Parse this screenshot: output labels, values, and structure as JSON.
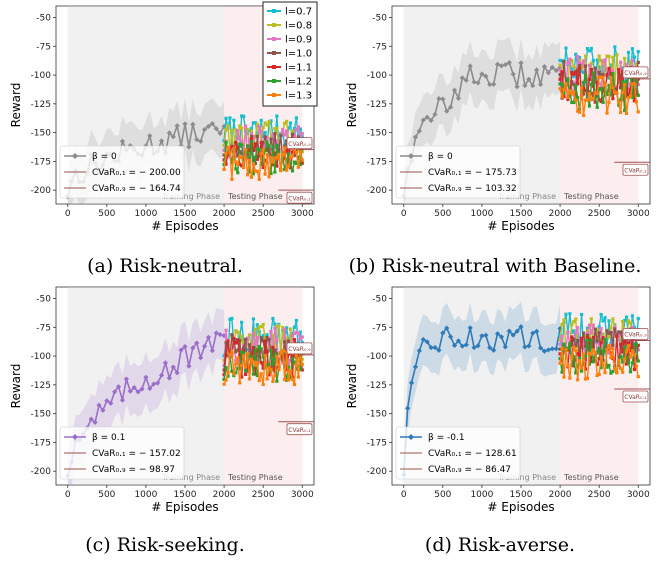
{
  "chart_data": [
    {
      "type": "line",
      "caption": "(a) Risk-neutral.",
      "main_color": "#8c8c8c",
      "main_label": "β = 0",
      "cvar_low_label": "CVaR₀.₁ = − 200.00",
      "cvar_high_label": "CVaR₀.₉ = − 164.74",
      "cvar_low_value": -200.0,
      "cvar_high_value": -164.74,
      "start": -200,
      "end": -150,
      "plateau_at": 1700,
      "test_level": -163,
      "test_spread": 12
    },
    {
      "type": "line",
      "caption": "(b) Risk-neutral with Baseline.",
      "main_color": "#8c8c8c",
      "main_label": "β = 0",
      "cvar_low_label": "CVaR₀.₁ = − 175.73",
      "cvar_high_label": "CVaR₀.₉ = − 103.32",
      "cvar_low_value": -175.73,
      "cvar_high_value": -103.32,
      "start": -200,
      "end": -100,
      "plateau_at": 900,
      "test_level": -105,
      "test_spread": 14
    },
    {
      "type": "line",
      "caption": "(c) Risk-seeking.",
      "main_color": "#9b6fc9",
      "main_label": "β = 0.1",
      "cvar_low_label": "CVaR₀.₁ = − 157.02",
      "cvar_high_label": "CVaR₀.₉ = − 98.97",
      "cvar_low_value": -157.02,
      "cvar_high_value": -98.97,
      "start": -200,
      "end": -90,
      "plateau_at": 1900,
      "test_level": -97,
      "test_spread": 14
    },
    {
      "type": "line",
      "caption": "(d) Risk-averse.",
      "main_color": "#2f7ab9",
      "main_label": "β = -0.1",
      "cvar_low_label": "CVaR₀.₁ = − 128.61",
      "cvar_high_label": "CVaR₀.₉ = − 86.47",
      "cvar_low_value": -128.61,
      "cvar_high_value": -86.47,
      "start": -200,
      "end": -85,
      "plateau_at": 300,
      "test_level": -92,
      "test_spread": 13
    }
  ],
  "axes": {
    "xlabel": "# Episodes",
    "ylabel": "Reward",
    "xlim": [
      -150,
      3150
    ],
    "ylim": [
      -212,
      -40
    ],
    "xticks": [
      0,
      500,
      1000,
      1500,
      2000,
      2500,
      3000
    ],
    "yticks": [
      -200,
      -175,
      -150,
      -125,
      -100,
      -75,
      -50
    ],
    "training_phase_label": "Training Phase",
    "testing_phase_label": "Testing Phase",
    "phase_split": 2000,
    "cvar_box_high": "CVaR₀.₉",
    "cvar_box_low": "CVaR₀.₁"
  },
  "legend": {
    "entries": [
      {
        "label": "l=0.7",
        "color": "#17becf"
      },
      {
        "label": "l=0.8",
        "color": "#bcbd22"
      },
      {
        "label": "l=0.9",
        "color": "#e377c2"
      },
      {
        "label": "l=1.0",
        "color": "#8c564b"
      },
      {
        "label": "l=1.1",
        "color": "#d62728"
      },
      {
        "label": "l=1.2",
        "color": "#2ca02c"
      },
      {
        "label": "l=1.3",
        "color": "#ff7f0e"
      }
    ]
  }
}
